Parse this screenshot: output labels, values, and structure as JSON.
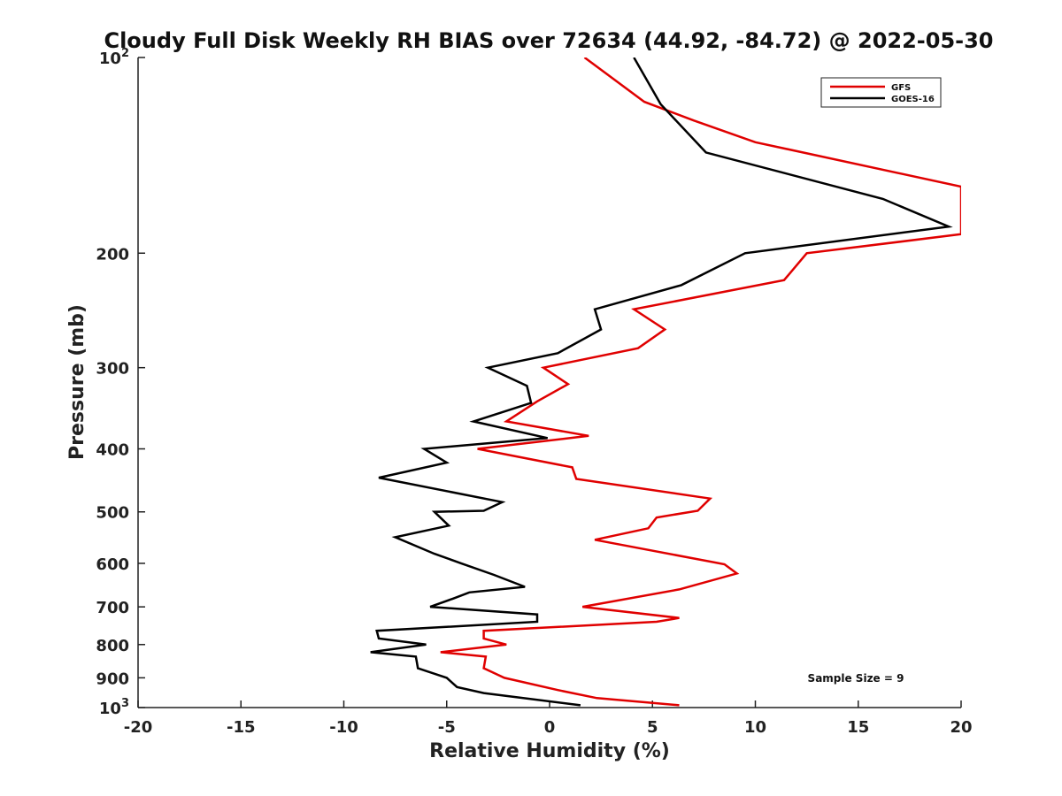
{
  "chart_data": {
    "type": "line",
    "title": "Cloudy Full Disk Weekly RH BIAS over 72634 (44.92, -84.72) @ 2022-05-30",
    "xlabel": "Relative Humidity (%)",
    "ylabel": "Pressure (mb)",
    "xlim": [
      -20,
      20
    ],
    "ylim": [
      100,
      1000
    ],
    "y_scale": "log",
    "y_reversed": true,
    "grid": false,
    "legend_position": "top-right",
    "x_ticks": [
      -20,
      -15,
      -10,
      -5,
      0,
      5,
      10,
      15,
      20
    ],
    "x_tick_labels": [
      "-20",
      "-15",
      "-10",
      "-5",
      "0",
      "5",
      "10",
      "15",
      "20"
    ],
    "y_ticks": [
      {
        "value": 100,
        "base": "10",
        "exp": "2"
      },
      {
        "value": 200,
        "label": "200"
      },
      {
        "value": 300,
        "label": "300"
      },
      {
        "value": 400,
        "label": "400"
      },
      {
        "value": 500,
        "label": "500"
      },
      {
        "value": 600,
        "label": "600"
      },
      {
        "value": 700,
        "label": "700"
      },
      {
        "value": 800,
        "label": "800"
      },
      {
        "value": 900,
        "label": "900"
      },
      {
        "value": 1000,
        "base": "10",
        "exp": "3"
      }
    ],
    "annotation": "Sample Size = 9",
    "series": [
      {
        "name": "GFS",
        "color": "#e00000",
        "points": [
          [
            1.7,
            100
          ],
          [
            4.6,
            117
          ],
          [
            7.0,
            125
          ],
          [
            10.0,
            135
          ],
          [
            20.0,
            158
          ],
          [
            20.0,
            187
          ],
          [
            12.5,
            200
          ],
          [
            11.4,
            220
          ],
          [
            4.1,
            244
          ],
          [
            5.6,
            262
          ],
          [
            4.3,
            280
          ],
          [
            -0.3,
            300
          ],
          [
            0.9,
            318
          ],
          [
            -0.6,
            338
          ],
          [
            -2.1,
            363
          ],
          [
            1.9,
            382
          ],
          [
            -3.5,
            400
          ],
          [
            1.1,
            427
          ],
          [
            1.3,
            445
          ],
          [
            7.8,
            477
          ],
          [
            7.2,
            498
          ],
          [
            5.2,
            510
          ],
          [
            4.8,
            530
          ],
          [
            2.2,
            552
          ],
          [
            8.5,
            602
          ],
          [
            9.1,
            622
          ],
          [
            6.3,
            658
          ],
          [
            1.6,
            700
          ],
          [
            6.3,
            728
          ],
          [
            5.2,
            738
          ],
          [
            -3.2,
            762
          ],
          [
            -3.2,
            783
          ],
          [
            -2.1,
            800
          ],
          [
            -5.3,
            822
          ],
          [
            -3.1,
            835
          ],
          [
            -3.2,
            870
          ],
          [
            -2.2,
            900
          ],
          [
            0.4,
            940
          ],
          [
            2.3,
            967
          ],
          [
            6.3,
            992
          ]
        ]
      },
      {
        "name": "GOES-16",
        "color": "#000000",
        "points": [
          [
            4.1,
            100
          ],
          [
            5.4,
            118
          ],
          [
            7.6,
            140
          ],
          [
            16.2,
            165
          ],
          [
            19.4,
            182
          ],
          [
            9.5,
            200
          ],
          [
            6.4,
            224
          ],
          [
            2.2,
            244
          ],
          [
            2.5,
            262
          ],
          [
            0.4,
            285
          ],
          [
            -3.0,
            300
          ],
          [
            -1.1,
            320
          ],
          [
            -0.9,
            340
          ],
          [
            -3.7,
            363
          ],
          [
            -0.1,
            385
          ],
          [
            -6.1,
            400
          ],
          [
            -5.0,
            420
          ],
          [
            -8.3,
            443
          ],
          [
            -2.3,
            483
          ],
          [
            -3.2,
            498
          ],
          [
            -5.6,
            500
          ],
          [
            -4.9,
            525
          ],
          [
            -7.5,
            547
          ],
          [
            -5.6,
            580
          ],
          [
            -4.3,
            600
          ],
          [
            -2.7,
            625
          ],
          [
            -1.2,
            652
          ],
          [
            -3.9,
            665
          ],
          [
            -4.7,
            680
          ],
          [
            -5.8,
            700
          ],
          [
            -0.6,
            719
          ],
          [
            -0.6,
            738
          ],
          [
            -8.4,
            762
          ],
          [
            -8.3,
            783
          ],
          [
            -6.0,
            800
          ],
          [
            -8.7,
            822
          ],
          [
            -6.5,
            835
          ],
          [
            -6.4,
            870
          ],
          [
            -5.0,
            900
          ],
          [
            -4.5,
            930
          ],
          [
            -3.2,
            950
          ],
          [
            1.5,
            992
          ]
        ]
      }
    ]
  }
}
